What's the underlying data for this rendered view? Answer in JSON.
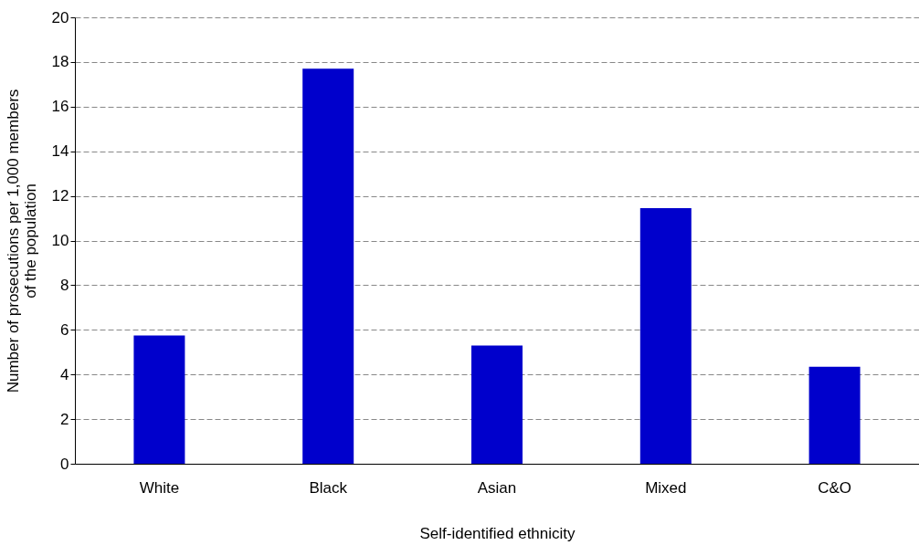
{
  "chart_data": {
    "type": "bar",
    "xlabel": "Self-identified ethnicity",
    "ylabel": "Number of prosecutions per 1,000 members of the population",
    "categories": [
      "White",
      "Black",
      "Asian",
      "Mixed",
      "C&O"
    ],
    "values": [
      5.75,
      17.7,
      5.3,
      11.45,
      4.35
    ],
    "color": "#0000cc",
    "ylim": [
      0,
      20
    ],
    "yticks": [
      0,
      2,
      4,
      6,
      8,
      10,
      12,
      14,
      16,
      18,
      20
    ],
    "grid": "y"
  }
}
